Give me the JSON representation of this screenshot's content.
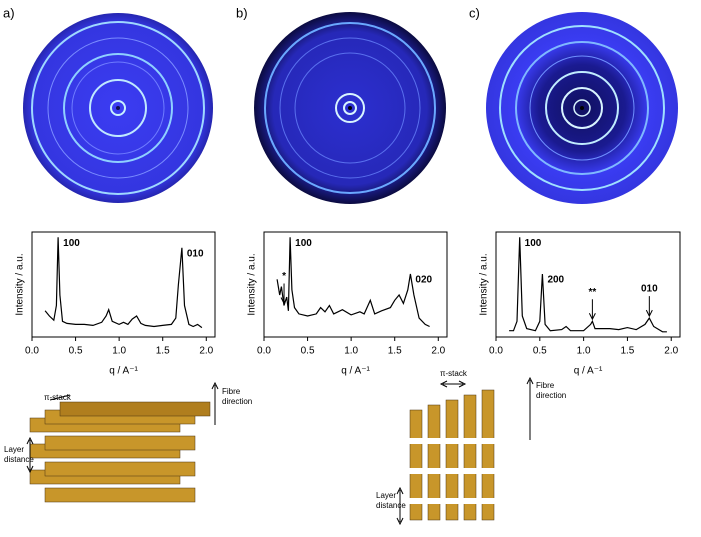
{
  "chart_data": [
    {
      "type": "line",
      "panel_label": "a)",
      "xlabel": "q / A⁻¹",
      "ylabel": "Intensity / a.u.",
      "color": "#000000",
      "xlim": [
        0,
        2.1
      ],
      "xticks": [
        {
          "value": 0,
          "label": "0.0"
        },
        0.5,
        {
          "value": 1,
          "label": "1.0"
        },
        1.5,
        {
          "value": 2,
          "label": "2.0"
        }
      ],
      "ylim": [
        0,
        100
      ],
      "x": [
        0.15,
        0.2,
        0.25,
        0.28,
        0.3,
        0.32,
        0.35,
        0.4,
        0.5,
        0.6,
        0.7,
        0.8,
        0.85,
        0.88,
        0.92,
        1.0,
        1.05,
        1.1,
        1.15,
        1.2,
        1.25,
        1.3,
        1.4,
        1.5,
        1.6,
        1.65,
        1.68,
        1.72,
        1.75,
        1.8,
        1.85,
        1.9,
        1.95
      ],
      "values": [
        25,
        20,
        16,
        30,
        95,
        40,
        15,
        13,
        12,
        12,
        11,
        14,
        20,
        26,
        15,
        12,
        14,
        12,
        17,
        20,
        13,
        11,
        10,
        11,
        12,
        18,
        50,
        85,
        30,
        12,
        10,
        12,
        9
      ],
      "annotations": [
        {
          "text": "100",
          "x": 0.3
        },
        {
          "text": "010",
          "x": 1.72
        }
      ]
    },
    {
      "type": "line",
      "panel_label": "b)",
      "xlabel": "q / A⁻¹",
      "ylabel": "Intensity / a.u.",
      "color": "#000000",
      "xlim": [
        0,
        2.1
      ],
      "xticks": [
        {
          "value": 0,
          "label": "0.0"
        },
        0.5,
        {
          "value": 1,
          "label": "1.0"
        },
        1.5,
        {
          "value": 2,
          "label": "2.0"
        }
      ],
      "ylim": [
        0,
        100
      ],
      "x": [
        0.15,
        0.18,
        0.2,
        0.23,
        0.26,
        0.28,
        0.3,
        0.32,
        0.35,
        0.4,
        0.5,
        0.6,
        0.65,
        0.7,
        0.75,
        0.8,
        0.9,
        1.0,
        1.1,
        1.15,
        1.22,
        1.27,
        1.35,
        1.45,
        1.5,
        1.55,
        1.6,
        1.65,
        1.68,
        1.72,
        1.78,
        1.85,
        1.9
      ],
      "values": [
        55,
        40,
        48,
        30,
        38,
        25,
        95,
        45,
        28,
        22,
        20,
        22,
        28,
        24,
        30,
        22,
        26,
        21,
        24,
        22,
        35,
        22,
        25,
        28,
        35,
        40,
        32,
        45,
        60,
        40,
        18,
        12,
        10
      ],
      "annotations": [
        {
          "text": "*",
          "x": 0.23,
          "arrow": true
        },
        {
          "text": "100",
          "x": 0.3
        },
        {
          "text": "020",
          "x": 1.68
        }
      ]
    },
    {
      "type": "line",
      "panel_label": "c)",
      "xlabel": "q / A⁻¹",
      "ylabel": "Intensity / a.u.",
      "color": "#000000",
      "xlim": [
        0,
        2.1
      ],
      "xticks": [
        {
          "value": 0,
          "label": "0.0"
        },
        0.5,
        {
          "value": 1,
          "label": "1.0"
        },
        1.5,
        {
          "value": 2,
          "label": "2.0"
        }
      ],
      "ylim": [
        0,
        100
      ],
      "x": [
        0.15,
        0.2,
        0.24,
        0.27,
        0.3,
        0.35,
        0.45,
        0.5,
        0.53,
        0.56,
        0.62,
        0.75,
        0.8,
        0.85,
        1.0,
        1.08,
        1.1,
        1.13,
        1.3,
        1.4,
        1.5,
        1.6,
        1.7,
        1.75,
        1.8,
        1.9,
        1.95
      ],
      "values": [
        6,
        6,
        15,
        95,
        20,
        8,
        6,
        15,
        60,
        12,
        6,
        7,
        10,
        6,
        6,
        12,
        15,
        8,
        8,
        7,
        9,
        7,
        12,
        18,
        10,
        5,
        5
      ],
      "annotations": [
        {
          "text": "100",
          "x": 0.27
        },
        {
          "text": "200",
          "x": 0.53
        },
        {
          "text": "**",
          "x": 1.1,
          "arrow": true
        },
        {
          "text": "010",
          "x": 1.75,
          "arrow": true
        }
      ]
    }
  ],
  "schematics": [
    {
      "pi_stack": "π-stack",
      "fibre": [
        "Fibre",
        "direction"
      ],
      "layer": [
        "Layer",
        "distance"
      ]
    },
    {
      "pi_stack": "π-stack",
      "fibre": [
        "Fibre",
        "direction"
      ],
      "layer": [
        "Layer",
        "distance"
      ]
    }
  ]
}
